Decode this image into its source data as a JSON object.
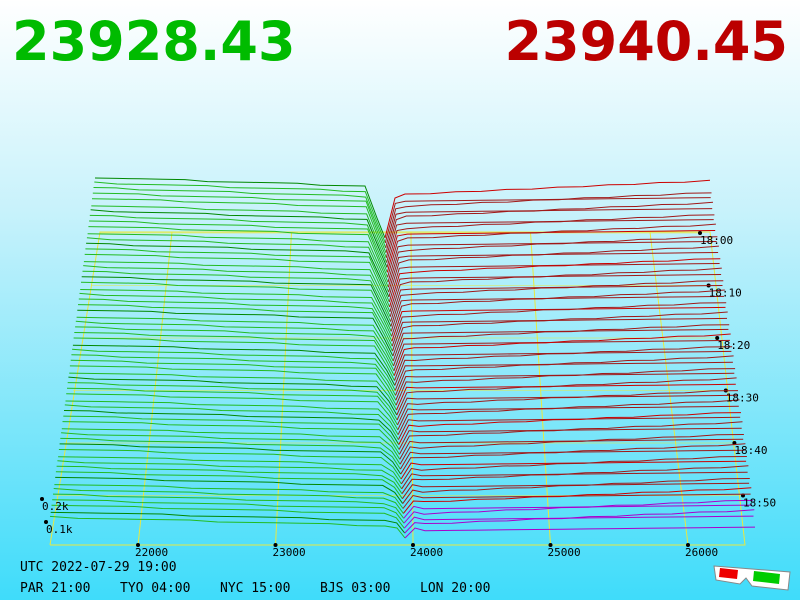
{
  "header": {
    "bid": "23928.43",
    "ask": "23940.45"
  },
  "price_axis": [
    "22000",
    "23000",
    "24000",
    "25000",
    "26000"
  ],
  "volume_axis": [
    "0.2k",
    "0.1k"
  ],
  "time_axis": [
    "18:00",
    "18:10",
    "18:20",
    "18:30",
    "18:40",
    "18:50"
  ],
  "footer": {
    "utc": "UTC 2022-07-29 19:00",
    "clocks": [
      "PAR 21:00",
      "TYO 04:00",
      "NYC 15:00",
      "BJS 03:00",
      "LON 20:00"
    ]
  }
}
